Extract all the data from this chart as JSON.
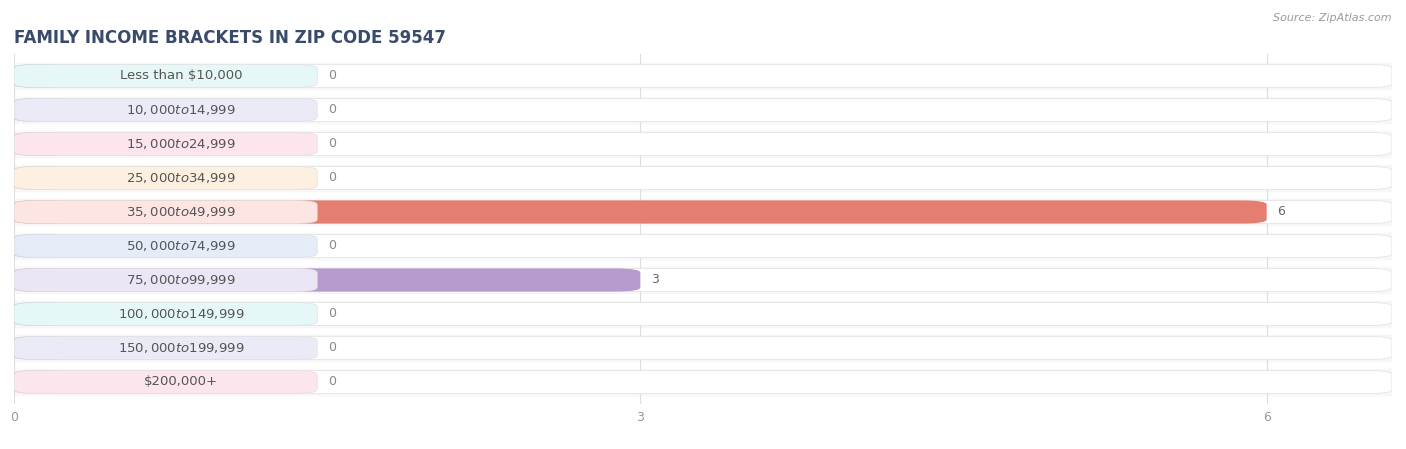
{
  "title": "FAMILY INCOME BRACKETS IN ZIP CODE 59547",
  "source": "Source: ZipAtlas.com",
  "categories": [
    "Less than $10,000",
    "$10,000 to $14,999",
    "$15,000 to $24,999",
    "$25,000 to $34,999",
    "$35,000 to $49,999",
    "$50,000 to $74,999",
    "$75,000 to $99,999",
    "$100,000 to $149,999",
    "$150,000 to $199,999",
    "$200,000+"
  ],
  "values": [
    0,
    0,
    0,
    0,
    6,
    0,
    3,
    0,
    0,
    0
  ],
  "bar_colors": [
    "#5ecec8",
    "#9b9bd4",
    "#f090a8",
    "#f5b96e",
    "#e07060",
    "#88aedd",
    "#b090c8",
    "#5ecec8",
    "#9b9bd4",
    "#f090a8"
  ],
  "label_bg_colors": [
    "#e5f8f7",
    "#ebebf7",
    "#fce5ec",
    "#fef0e0",
    "#fce5e2",
    "#e5ecf7",
    "#ece5f5",
    "#e5f8f7",
    "#ebebf7",
    "#fce5ec"
  ],
  "xlim_max": 6.6,
  "xticks": [
    0,
    3,
    6
  ],
  "bg_color": "#ffffff",
  "row_bg_color": "#f7f7f7",
  "bar_bg_color": "#ffffff",
  "grid_color": "#dddddd",
  "title_color": "#3a4a6b",
  "title_fontsize": 12,
  "label_fontsize": 9.5,
  "value_fontsize": 9,
  "source_fontsize": 8
}
